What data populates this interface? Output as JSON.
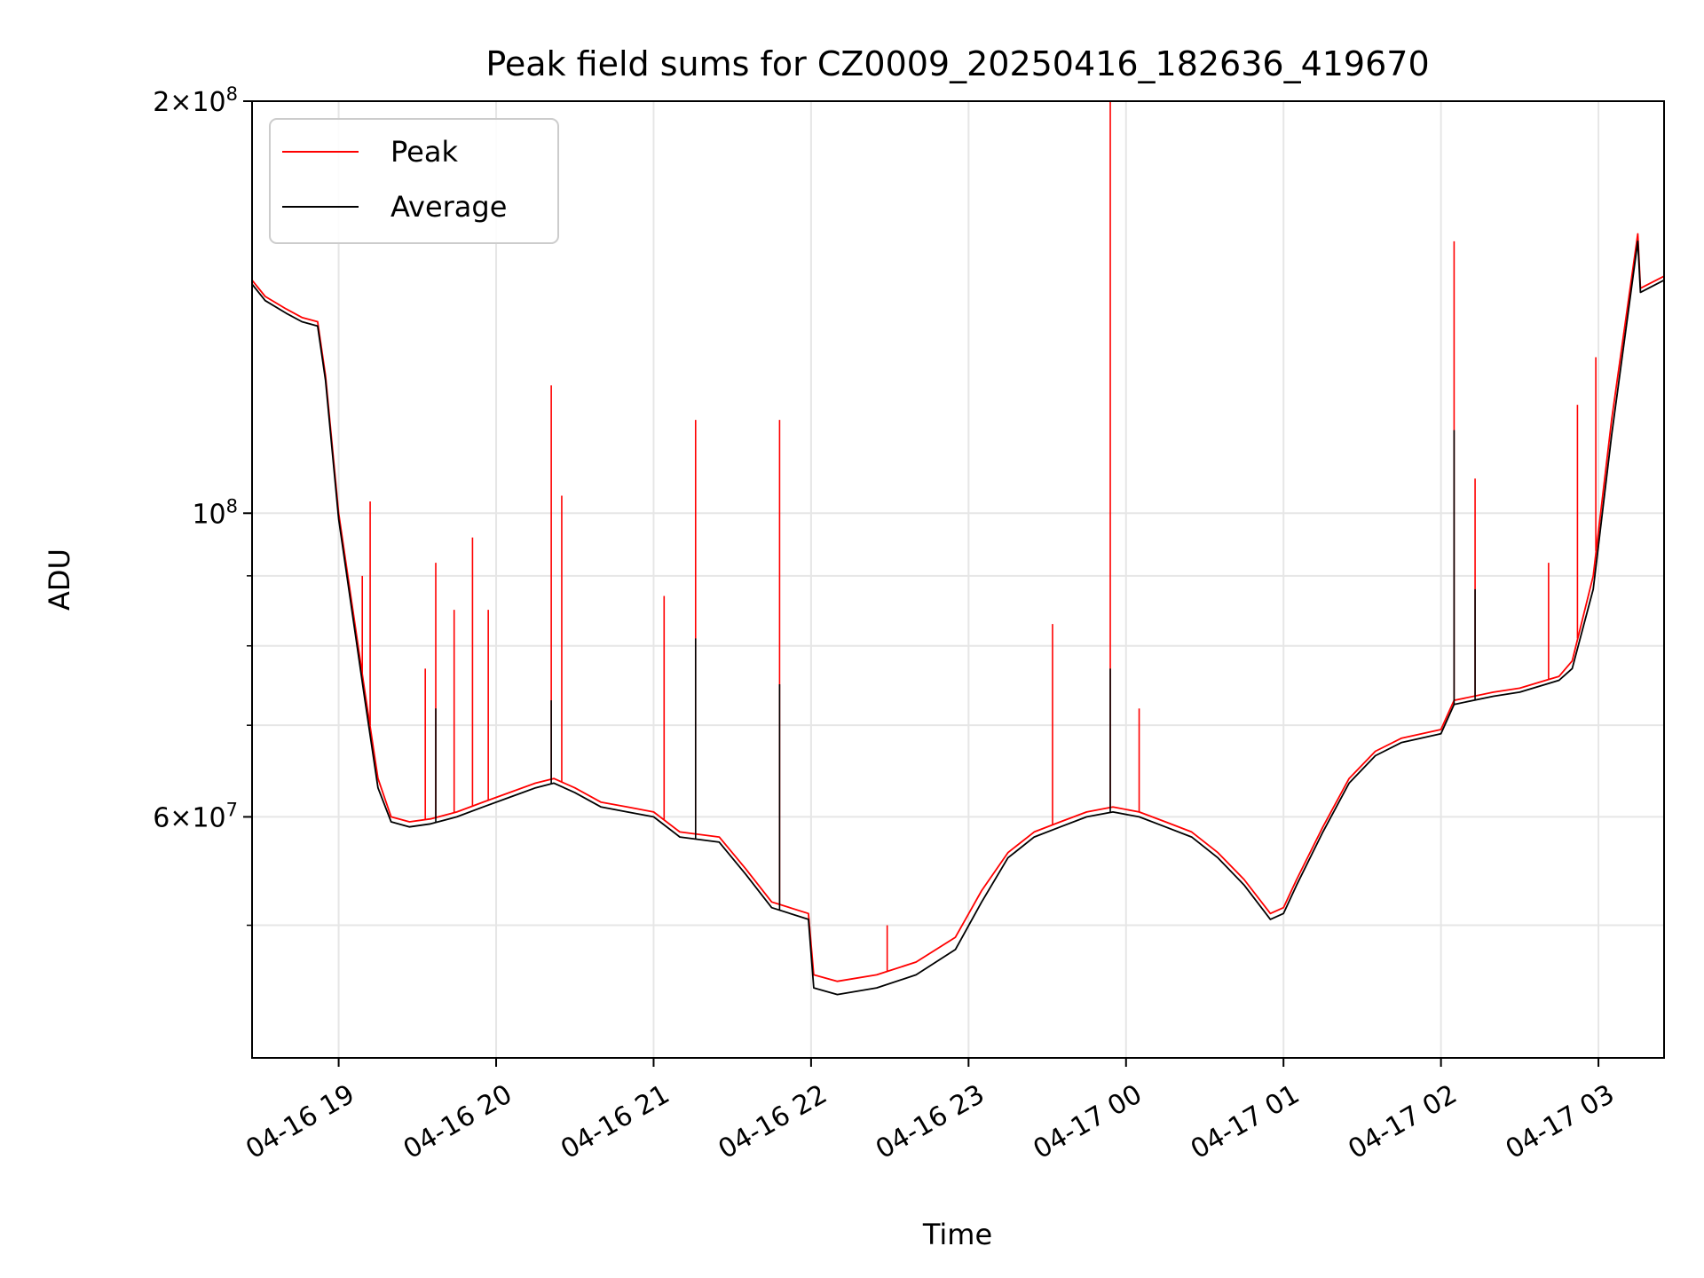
{
  "chart_data": {
    "type": "line",
    "title": "Peak field sums for CZ0009_20250416_182636_419670",
    "xlabel": "Time",
    "ylabel": "ADU",
    "y_scale": "log",
    "ylim": [
      40000000,
      200000000
    ],
    "xlim": [
      "2025-04-16 18:27",
      "2025-04-17 03:25"
    ],
    "grid": true,
    "legend_position": "top-left",
    "x_ticks": [
      "04-16 19",
      "04-16 20",
      "04-16 21",
      "04-16 22",
      "04-16 23",
      "04-17 00",
      "04-17 01",
      "04-17 02",
      "04-17 03"
    ],
    "y_ticks": [
      {
        "value": 60000000,
        "base": "6",
        "exp": "7"
      },
      {
        "value": 100000000,
        "base": "10",
        "exp": "8"
      },
      {
        "value": 200000000,
        "base": "2",
        "exp": "8"
      }
    ],
    "minor_y_ticks": [
      50000000,
      70000000,
      80000000,
      90000000
    ],
    "series": [
      {
        "name": "Peak",
        "color": "#ff0000",
        "x": [
          "2025-04-16 18:27",
          "2025-04-16 18:32",
          "2025-04-16 18:40",
          "2025-04-16 18:46",
          "2025-04-16 18:52",
          "2025-04-16 18:55",
          "2025-04-16 19:00",
          "2025-04-16 19:05",
          "2025-04-16 19:10",
          "2025-04-16 19:15",
          "2025-04-16 19:20",
          "2025-04-16 19:27",
          "2025-04-16 19:35",
          "2025-04-16 19:45",
          "2025-04-16 19:55",
          "2025-04-16 20:05",
          "2025-04-16 20:15",
          "2025-04-16 20:22",
          "2025-04-16 20:30",
          "2025-04-16 20:40",
          "2025-04-16 20:50",
          "2025-04-16 21:00",
          "2025-04-16 21:10",
          "2025-04-16 21:25",
          "2025-04-16 21:35",
          "2025-04-16 21:45",
          "2025-04-16 21:59",
          "2025-04-16 22:01",
          "2025-04-16 22:10",
          "2025-04-16 22:25",
          "2025-04-16 22:40",
          "2025-04-16 22:55",
          "2025-04-16 23:05",
          "2025-04-16 23:15",
          "2025-04-16 23:25",
          "2025-04-16 23:35",
          "2025-04-16 23:45",
          "2025-04-16 23:55",
          "2025-04-17 00:05",
          "2025-04-17 00:15",
          "2025-04-17 00:25",
          "2025-04-17 00:35",
          "2025-04-17 00:45",
          "2025-04-17 00:55",
          "2025-04-17 01:00",
          "2025-04-17 01:05",
          "2025-04-17 01:15",
          "2025-04-17 01:25",
          "2025-04-17 01:35",
          "2025-04-17 01:45",
          "2025-04-17 02:00",
          "2025-04-17 02:05",
          "2025-04-17 02:20",
          "2025-04-17 02:30",
          "2025-04-17 02:40",
          "2025-04-17 02:45",
          "2025-04-17 02:50",
          "2025-04-17 02:58",
          "2025-04-17 03:05",
          "2025-04-17 03:15",
          "2025-04-17 03:16",
          "2025-04-17 03:25"
        ],
        "values": [
          148000000,
          144000000,
          141000000,
          139000000,
          138000000,
          126000000,
          100000000,
          86000000,
          74000000,
          64000000,
          60000000,
          59500000,
          59800000,
          60500000,
          61500000,
          62500000,
          63500000,
          64000000,
          63000000,
          61500000,
          61000000,
          60500000,
          58500000,
          58000000,
          55000000,
          52000000,
          51000000,
          46000000,
          45500000,
          46000000,
          47000000,
          49000000,
          53000000,
          56500000,
          58500000,
          59500000,
          60500000,
          61000000,
          60500000,
          59500000,
          58500000,
          56500000,
          54000000,
          51000000,
          51500000,
          54000000,
          59000000,
          64000000,
          67000000,
          68500000,
          69500000,
          73000000,
          74000000,
          74500000,
          75500000,
          76000000,
          78000000,
          90000000,
          117000000,
          160000000,
          146000000,
          149000000
        ],
        "spikes": [
          {
            "x": "2025-04-16 19:09",
            "value": 90000000
          },
          {
            "x": "2025-04-16 19:12",
            "value": 102000000
          },
          {
            "x": "2025-04-16 19:33",
            "value": 77000000
          },
          {
            "x": "2025-04-16 19:37",
            "value": 92000000
          },
          {
            "x": "2025-04-16 19:44",
            "value": 85000000
          },
          {
            "x": "2025-04-16 19:51",
            "value": 96000000
          },
          {
            "x": "2025-04-16 19:57",
            "value": 85000000
          },
          {
            "x": "2025-04-16 20:21",
            "value": 124000000
          },
          {
            "x": "2025-04-16 20:25",
            "value": 103000000
          },
          {
            "x": "2025-04-16 21:04",
            "value": 87000000
          },
          {
            "x": "2025-04-16 21:16",
            "value": 117000000
          },
          {
            "x": "2025-04-16 21:48",
            "value": 117000000
          },
          {
            "x": "2025-04-16 22:29",
            "value": 50000000
          },
          {
            "x": "2025-04-16 23:32",
            "value": 83000000
          },
          {
            "x": "2025-04-16 23:54",
            "value": 200000000
          },
          {
            "x": "2025-04-17 00:05",
            "value": 72000000
          },
          {
            "x": "2025-04-17 02:05",
            "value": 158000000
          },
          {
            "x": "2025-04-17 02:13",
            "value": 106000000
          },
          {
            "x": "2025-04-17 02:41",
            "value": 92000000
          },
          {
            "x": "2025-04-17 02:52",
            "value": 120000000
          },
          {
            "x": "2025-04-17 02:59",
            "value": 130000000
          }
        ]
      },
      {
        "name": "Average",
        "color": "#000000",
        "x": [
          "2025-04-16 18:27",
          "2025-04-16 18:32",
          "2025-04-16 18:40",
          "2025-04-16 18:46",
          "2025-04-16 18:52",
          "2025-04-16 18:55",
          "2025-04-16 19:00",
          "2025-04-16 19:05",
          "2025-04-16 19:10",
          "2025-04-16 19:15",
          "2025-04-16 19:20",
          "2025-04-16 19:27",
          "2025-04-16 19:35",
          "2025-04-16 19:45",
          "2025-04-16 19:55",
          "2025-04-16 20:05",
          "2025-04-16 20:15",
          "2025-04-16 20:22",
          "2025-04-16 20:30",
          "2025-04-16 20:40",
          "2025-04-16 20:50",
          "2025-04-16 21:00",
          "2025-04-16 21:10",
          "2025-04-16 21:25",
          "2025-04-16 21:35",
          "2025-04-16 21:45",
          "2025-04-16 21:59",
          "2025-04-16 22:01",
          "2025-04-16 22:10",
          "2025-04-16 22:25",
          "2025-04-16 22:40",
          "2025-04-16 22:55",
          "2025-04-16 23:05",
          "2025-04-16 23:15",
          "2025-04-16 23:25",
          "2025-04-16 23:35",
          "2025-04-16 23:45",
          "2025-04-16 23:55",
          "2025-04-17 00:05",
          "2025-04-17 00:15",
          "2025-04-17 00:25",
          "2025-04-17 00:35",
          "2025-04-17 00:45",
          "2025-04-17 00:55",
          "2025-04-17 01:00",
          "2025-04-17 01:05",
          "2025-04-17 01:15",
          "2025-04-17 01:25",
          "2025-04-17 01:35",
          "2025-04-17 01:45",
          "2025-04-17 02:00",
          "2025-04-17 02:05",
          "2025-04-17 02:20",
          "2025-04-17 02:30",
          "2025-04-17 02:40",
          "2025-04-17 02:45",
          "2025-04-17 02:50",
          "2025-04-17 02:58",
          "2025-04-17 03:05",
          "2025-04-17 03:15",
          "2025-04-17 03:16",
          "2025-04-17 03:25"
        ],
        "values": [
          147000000,
          143000000,
          140000000,
          138000000,
          137000000,
          125000000,
          99000000,
          85000000,
          73000000,
          63000000,
          59500000,
          59000000,
          59300000,
          60000000,
          61000000,
          62000000,
          63000000,
          63500000,
          62500000,
          61000000,
          60500000,
          60000000,
          58000000,
          57500000,
          54500000,
          51500000,
          50500000,
          45000000,
          44500000,
          45000000,
          46000000,
          48000000,
          52000000,
          56000000,
          58000000,
          59000000,
          60000000,
          60500000,
          60000000,
          59000000,
          58000000,
          56000000,
          53500000,
          50500000,
          51000000,
          53500000,
          58500000,
          63500000,
          66500000,
          68000000,
          69000000,
          72500000,
          73500000,
          74000000,
          75000000,
          75500000,
          77000000,
          88000000,
          114000000,
          158000000,
          145000000,
          148000000
        ],
        "spikes": [
          {
            "x": "2025-04-16 19:37",
            "value": 72000000
          },
          {
            "x": "2025-04-16 20:21",
            "value": 73000000
          },
          {
            "x": "2025-04-16 21:16",
            "value": 81000000
          },
          {
            "x": "2025-04-16 21:48",
            "value": 75000000
          },
          {
            "x": "2025-04-16 23:54",
            "value": 77000000
          },
          {
            "x": "2025-04-17 02:05",
            "value": 115000000
          },
          {
            "x": "2025-04-17 02:13",
            "value": 88000000
          }
        ]
      }
    ]
  }
}
